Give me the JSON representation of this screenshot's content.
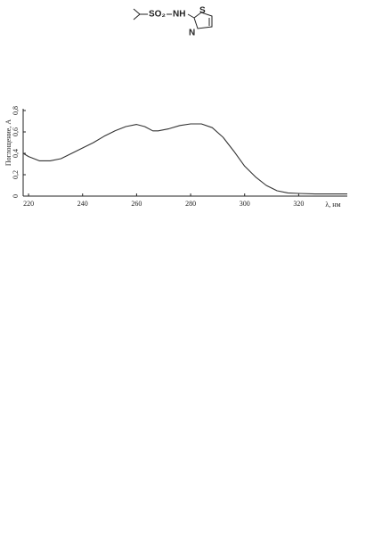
{
  "structure": {
    "sulfonyl": "SO₂",
    "amine": "NH",
    "sulfur": "S",
    "nitrogen": "N"
  },
  "chart_data": {
    "type": "line",
    "xlabel": "λ, нм",
    "ylabel": "Поглощение, A",
    "x": [
      218,
      220,
      224,
      228,
      232,
      236,
      240,
      244,
      248,
      252,
      256,
      260,
      263,
      266,
      268,
      272,
      276,
      280,
      284,
      288,
      292,
      296,
      300,
      304,
      308,
      312,
      316,
      320,
      326,
      332,
      338
    ],
    "series": [
      {
        "color": "#333333",
        "values": [
          0.4,
          0.37,
          0.33,
          0.33,
          0.35,
          0.4,
          0.45,
          0.5,
          0.56,
          0.61,
          0.65,
          0.67,
          0.65,
          0.61,
          0.61,
          0.63,
          0.66,
          0.675,
          0.675,
          0.64,
          0.55,
          0.42,
          0.28,
          0.18,
          0.1,
          0.05,
          0.03,
          0.025,
          0.02,
          0.02,
          0.02
        ]
      }
    ],
    "xlim": [
      218,
      338
    ],
    "ylim": [
      0,
      0.8
    ],
    "xticks": [
      220,
      240,
      260,
      280,
      300,
      320
    ],
    "yticks": [
      0,
      {
        "value": 0.2,
        "label": "0,2"
      },
      {
        "value": 0.4,
        "label": "0,4"
      },
      {
        "value": 0.6,
        "label": "0,6"
      },
      {
        "value": 0.8,
        "label": "0,8"
      }
    ]
  }
}
